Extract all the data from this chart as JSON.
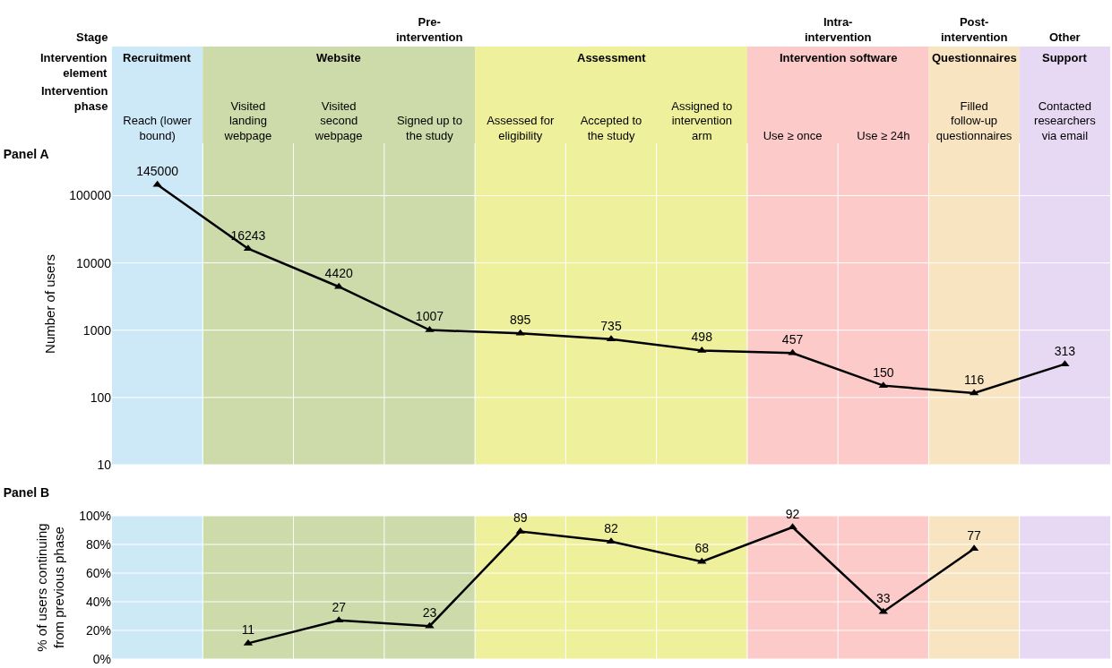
{
  "chart_data": [
    {
      "type": "line",
      "title": "Panel A",
      "ylabel": "Number of users",
      "categories": [
        "Reach (lower bound)",
        "Visited landing webpage",
        "Visited second webpage",
        "Signed up to the study",
        "Assessed for eligibility",
        "Accepted to the study",
        "Assigned to intervention arm",
        "Use ≥ once",
        "Use ≥ 24h",
        "Filled follow-up questionnaires",
        "Contacted researchers via email"
      ],
      "series": [
        {
          "color": "#000000",
          "values": [
            145000,
            16243,
            4420,
            1007,
            895,
            735,
            498,
            457,
            150,
            116,
            313
          ]
        }
      ],
      "log": true,
      "ylim": [
        10,
        600000
      ],
      "yticks": [
        10,
        100,
        1000,
        10000,
        100000
      ],
      "grid": true,
      "marker": "triangle",
      "line_style": "solid",
      "data_labels": true,
      "annotations": [
        "Stage",
        "Intervention element",
        "Intervention phase",
        "Pre-intervention",
        "Intra-intervention",
        "Post-intervention",
        "Other"
      ],
      "bands": [
        {
          "axis": "x",
          "from": "Reach (lower bound)",
          "to": "Reach (lower bound)",
          "label": "Recruitment",
          "color": "#cde9f8"
        },
        {
          "axis": "x",
          "from": "Visited landing webpage",
          "to": "Signed up to the study",
          "label": "Website",
          "color": "#cddaa9"
        },
        {
          "axis": "x",
          "from": "Assessed for eligibility",
          "to": "Assigned to intervention arm",
          "label": "Assessment",
          "color": "#eef09c"
        },
        {
          "axis": "x",
          "from": "Use ≥ once",
          "to": "Use ≥ 24h",
          "label": "Intervention software",
          "color": "#fccac9"
        },
        {
          "axis": "x",
          "from": "Filled follow-up questionnaires",
          "to": "Filled follow-up questionnaires",
          "label": "Questionnaires",
          "color": "#f8e4c1"
        },
        {
          "axis": "x",
          "from": "Contacted researchers via email",
          "to": "Contacted researchers via email",
          "label": "Support",
          "color": "#e7d9f4"
        }
      ]
    },
    {
      "type": "line",
      "title": "Panel B",
      "ylabel": "% of users continuing from previous phase",
      "tick_labels": "y",
      "categories": [
        "Reach (lower bound)",
        "Visited landing webpage",
        "Visited second webpage",
        "Signed up to the study",
        "Assessed for eligibility",
        "Accepted to the study",
        "Assigned to intervention arm",
        "Use ≥ once",
        "Use ≥ 24h",
        "Filled follow-up questionnaires",
        "Contacted researchers via email"
      ],
      "series": [
        {
          "color": "#000000",
          "values": [
            null,
            11,
            27,
            23,
            89,
            82,
            68,
            92,
            33,
            77,
            null
          ]
        }
      ],
      "ylim": [
        0,
        100
      ],
      "yticks": [
        {
          "value": 0,
          "label": "0%"
        },
        {
          "value": 20,
          "label": "20%"
        },
        {
          "value": 40,
          "label": "40%"
        },
        {
          "value": 60,
          "label": "60%"
        },
        {
          "value": 80,
          "label": "80%"
        },
        {
          "value": 100,
          "label": "100%"
        }
      ],
      "grid": true,
      "marker": "triangle",
      "line_style": "solid",
      "data_labels": true,
      "bands": [
        {
          "axis": "x",
          "from": "Reach (lower bound)",
          "to": "Reach (lower bound)",
          "color": "#cde9f8"
        },
        {
          "axis": "x",
          "from": "Visited landing webpage",
          "to": "Signed up to the study",
          "color": "#cddaa9"
        },
        {
          "axis": "x",
          "from": "Assessed for eligibility",
          "to": "Assigned to intervention arm",
          "color": "#eef09c"
        },
        {
          "axis": "x",
          "from": "Use ≥ once",
          "to": "Use ≥ 24h",
          "color": "#fccac9"
        },
        {
          "axis": "x",
          "from": "Filled follow-up questionnaires",
          "to": "Filled follow-up questionnaires",
          "color": "#f8e4c1"
        },
        {
          "axis": "x",
          "from": "Contacted researchers via email",
          "to": "Contacted researchers via email",
          "color": "#e7d9f4"
        }
      ]
    }
  ]
}
